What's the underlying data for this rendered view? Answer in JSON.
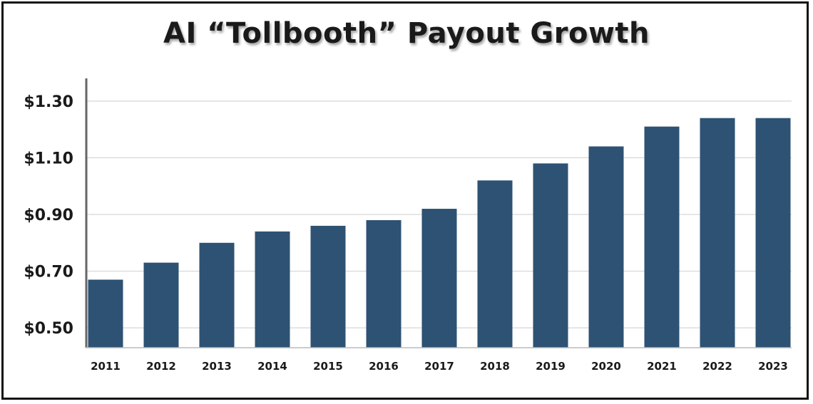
{
  "chart_data": {
    "type": "bar",
    "title": "AI “Tollbooth” Payout Growth",
    "xlabel": "",
    "ylabel": "",
    "categories": [
      "2011",
      "2012",
      "2013",
      "2014",
      "2015",
      "2016",
      "2017",
      "2018",
      "2019",
      "2020",
      "2021",
      "2022",
      "2023"
    ],
    "values": [
      0.67,
      0.73,
      0.8,
      0.84,
      0.86,
      0.88,
      0.92,
      1.02,
      1.08,
      1.14,
      1.21,
      1.24,
      1.24
    ],
    "ylim": [
      0.43,
      1.38
    ],
    "yticks": [
      0.5,
      0.7,
      0.9,
      1.1,
      1.3
    ],
    "ytick_labels": [
      "$0.50",
      "$0.70",
      "$0.90",
      "$1.10",
      "$1.30"
    ],
    "bar_color": "#2d5273",
    "grid": true,
    "legend": "none"
  }
}
